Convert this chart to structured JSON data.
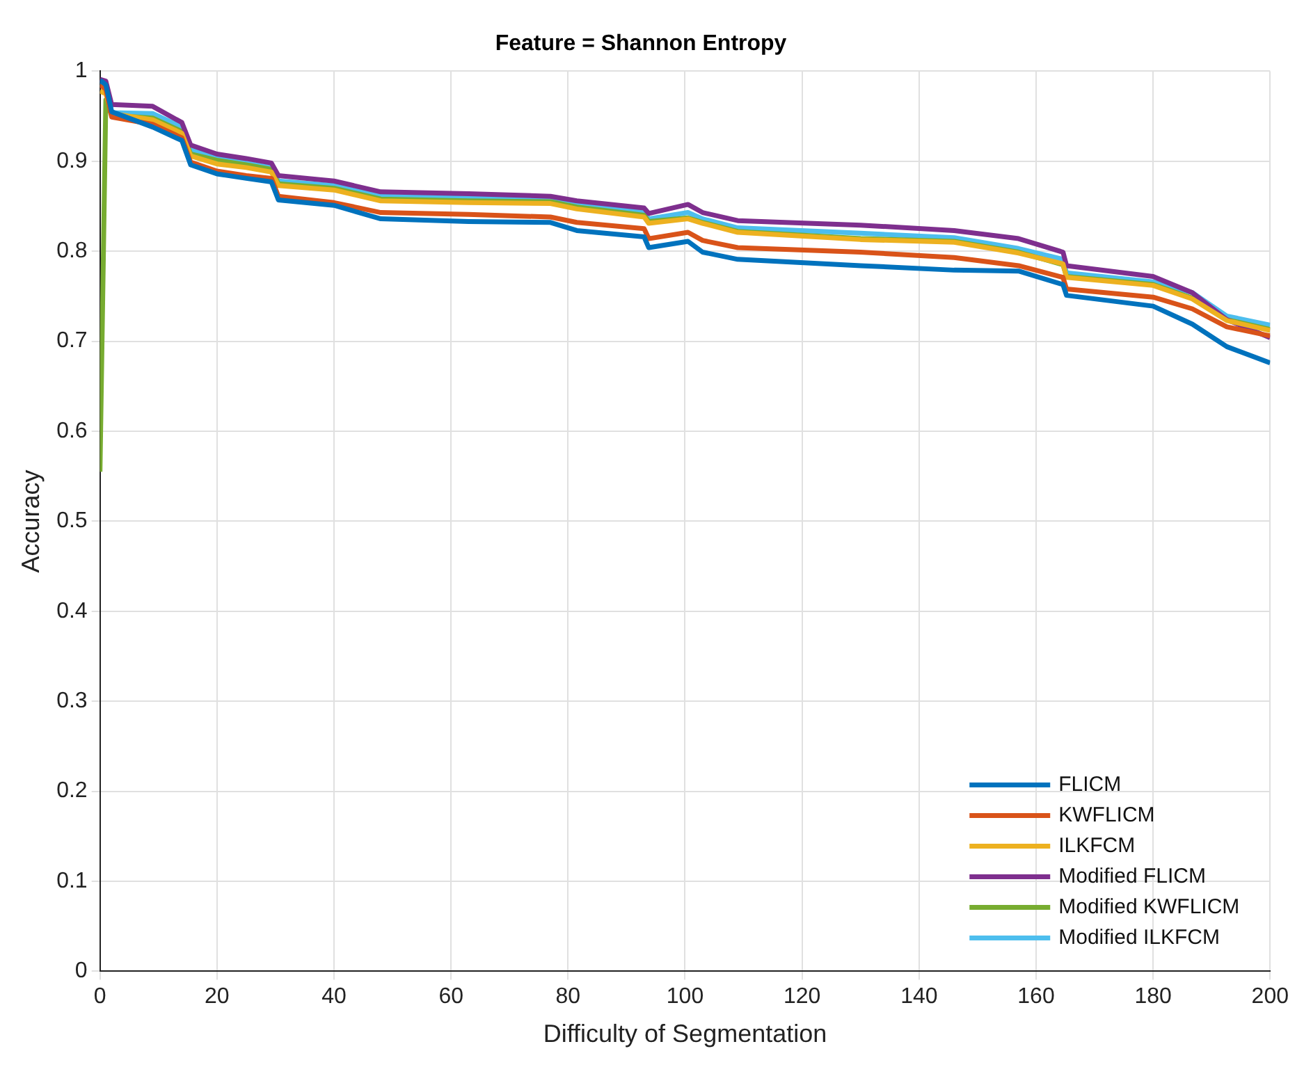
{
  "chart_data": {
    "type": "line",
    "title": "Feature = Shannon Entropy",
    "xlabel": "Difficulty of Segmentation",
    "ylabel": "Accuracy",
    "x": [
      0,
      1,
      2,
      9,
      14,
      15.5,
      20,
      25,
      29.3,
      30.5,
      40,
      48,
      63,
      77,
      81.5,
      93,
      93.8,
      100.5,
      103,
      109,
      130,
      146,
      157,
      164.6,
      165.2,
      180,
      186.7,
      192.6,
      200
    ],
    "xlim": [
      0,
      200
    ],
    "xticks": [
      0,
      20,
      40,
      60,
      80,
      100,
      120,
      140,
      160,
      180,
      200
    ],
    "ylim": [
      0,
      1
    ],
    "yticks": [
      0,
      0.1,
      0.2,
      0.3,
      0.4,
      0.5,
      0.6,
      0.7,
      0.8,
      0.9,
      1
    ],
    "grid": true,
    "legend": "bottom right",
    "marker": "none",
    "line_style": "solid",
    "series": [
      {
        "name": "FLICM",
        "color": "#0072bd",
        "values": [
          0.99,
          0.985,
          0.955,
          0.938,
          0.923,
          0.896,
          0.886,
          0.881,
          0.877,
          0.857,
          0.851,
          0.836,
          0.833,
          0.832,
          0.823,
          0.816,
          0.804,
          0.811,
          0.799,
          0.791,
          0.784,
          0.779,
          0.778,
          0.763,
          0.751,
          0.739,
          0.719,
          0.694,
          0.676
        ]
      },
      {
        "name": "KWFLICM",
        "color": "#d95319",
        "values": [
          0.985,
          0.98,
          0.949,
          0.941,
          0.926,
          0.899,
          0.889,
          0.884,
          0.881,
          0.861,
          0.854,
          0.843,
          0.841,
          0.838,
          0.832,
          0.825,
          0.814,
          0.821,
          0.812,
          0.804,
          0.799,
          0.793,
          0.784,
          0.771,
          0.758,
          0.749,
          0.736,
          0.716,
          0.706
        ]
      },
      {
        "name": "ILKFCM",
        "color": "#edb120",
        "values": [
          0.978,
          0.975,
          0.953,
          0.946,
          0.931,
          0.906,
          0.897,
          0.893,
          0.888,
          0.873,
          0.868,
          0.856,
          0.854,
          0.853,
          0.847,
          0.838,
          0.831,
          0.836,
          0.831,
          0.821,
          0.813,
          0.81,
          0.798,
          0.786,
          0.771,
          0.762,
          0.747,
          0.723,
          0.712
        ]
      },
      {
        "name": "Modified FLICM",
        "color": "#7e2f8e",
        "values": [
          0.991,
          0.989,
          0.963,
          0.961,
          0.943,
          0.918,
          0.908,
          0.903,
          0.898,
          0.884,
          0.878,
          0.866,
          0.864,
          0.861,
          0.856,
          0.848,
          0.842,
          0.852,
          0.843,
          0.834,
          0.829,
          0.823,
          0.814,
          0.799,
          0.784,
          0.772,
          0.754,
          0.724,
          0.704
        ]
      },
      {
        "name": "Modified KWFLICM",
        "color": "#77ac30",
        "values": [
          0.555,
          0.968,
          0.951,
          0.948,
          0.933,
          0.908,
          0.901,
          0.896,
          0.891,
          0.875,
          0.87,
          0.858,
          0.856,
          0.855,
          0.849,
          0.84,
          0.833,
          0.837,
          0.832,
          0.822,
          0.814,
          0.811,
          0.799,
          0.785,
          0.772,
          0.763,
          0.748,
          0.724,
          0.713
        ]
      },
      {
        "name": "Modified ILKFCM",
        "color": "#4dbeee",
        "values": [
          0.985,
          0.985,
          0.954,
          0.953,
          0.938,
          0.913,
          0.903,
          0.898,
          0.893,
          0.878,
          0.873,
          0.861,
          0.859,
          0.857,
          0.852,
          0.843,
          0.836,
          0.843,
          0.836,
          0.826,
          0.82,
          0.815,
          0.803,
          0.791,
          0.776,
          0.766,
          0.754,
          0.728,
          0.718
        ]
      }
    ]
  }
}
